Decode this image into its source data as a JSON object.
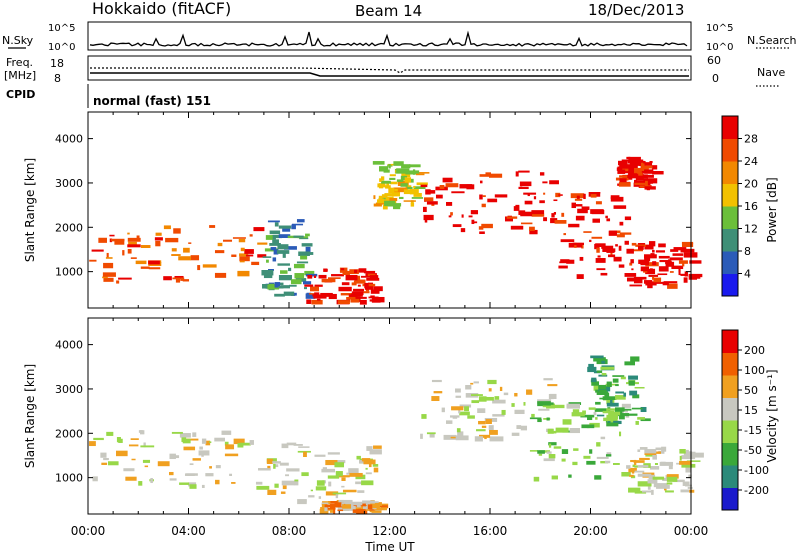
{
  "header": {
    "station": "Hokkaido (fitACF)",
    "beam": "Beam 14",
    "date": "18/Dec/2013"
  },
  "top_panels": {
    "nsky_label": "N.Sky",
    "nsky_ticks": [
      "10^5",
      "10^0"
    ],
    "nsearch_label": "N.Search",
    "nsearch_ticks": [
      "10^5",
      "10^0"
    ],
    "freq_label_line1": "Freq.",
    "freq_label_line2": "[MHz]",
    "freq_ticks": [
      "18",
      "8"
    ],
    "nave_label": "Nave",
    "nave_ticks": [
      "60",
      "0"
    ],
    "cpid_label": "CPID",
    "cpid_text": "normal (fast) 151"
  },
  "chart_data": [
    {
      "type": "heatmap",
      "title": "",
      "ylabel": "Slant Range [km]",
      "xlabel": "",
      "ylim": [
        180,
        4600
      ],
      "yticks": [
        "4000",
        "3000",
        "2000",
        "1000"
      ],
      "colorbar": {
        "label": "Power [dB]",
        "ticks": [
          "28",
          "24",
          "20",
          "16",
          "12",
          "8",
          "4"
        ],
        "colors": [
          "#1a1aee",
          "#2b5bb8",
          "#3f8f77",
          "#6bbf3a",
          "#f2c100",
          "#f28800",
          "#f04a00",
          "#e80000"
        ]
      },
      "regions": [
        {
          "t0": 0.0,
          "t1": 6.8,
          "r0": 800,
          "r1": 2100,
          "level": 6
        },
        {
          "t0": 6.9,
          "t1": 8.7,
          "r0": 500,
          "r1": 2200,
          "level": 2
        },
        {
          "t0": 8.6,
          "t1": 11.4,
          "r0": 350,
          "r1": 1100,
          "level": 7
        },
        {
          "t0": 11.3,
          "t1": 13.2,
          "r0": 2500,
          "r1": 3500,
          "level": 4
        },
        {
          "t0": 13.2,
          "t1": 18.4,
          "r0": 1900,
          "r1": 3300,
          "level": 7
        },
        {
          "t0": 18.4,
          "t1": 21.4,
          "r0": 900,
          "r1": 2800,
          "level": 7
        },
        {
          "t0": 21.4,
          "t1": 24.0,
          "r0": 700,
          "r1": 1700,
          "level": 7
        },
        {
          "t0": 21.0,
          "t1": 22.5,
          "r0": 2900,
          "r1": 3600,
          "level": 7
        }
      ]
    },
    {
      "type": "heatmap",
      "title": "",
      "ylabel": "Slant Range [km]",
      "xlabel": "Time UT",
      "ylim": [
        180,
        4600
      ],
      "yticks": [
        "4000",
        "3000",
        "2000",
        "1000"
      ],
      "xticks": [
        "00:00",
        "04:00",
        "08:00",
        "12:00",
        "16:00",
        "20:00",
        "00:00"
      ],
      "xlim": [
        0,
        24
      ],
      "colorbar": {
        "label": "Velocity [m s⁻¹]",
        "ticks": [
          "200",
          "100",
          "50",
          "15",
          "-15",
          "-50",
          "-100",
          "-200"
        ],
        "colors": [
          "#1a1acc",
          "#2b8a7a",
          "#3aa83a",
          "#98d848",
          "#c8c8c0",
          "#f0a020",
          "#f06000",
          "#e80000"
        ]
      },
      "regions": [
        {
          "t0": 0.0,
          "t1": 6.8,
          "r0": 800,
          "r1": 2100,
          "level": 4
        },
        {
          "t0": 6.9,
          "t1": 11.4,
          "r0": 500,
          "r1": 1800,
          "level": 4
        },
        {
          "t0": 9.2,
          "t1": 11.5,
          "r0": 280,
          "r1": 500,
          "level": 5
        },
        {
          "t0": 13.2,
          "t1": 18.4,
          "r0": 1900,
          "r1": 3300,
          "level": 4
        },
        {
          "t0": 17.4,
          "t1": 21.4,
          "r0": 1000,
          "r1": 2800,
          "level": 3
        },
        {
          "t0": 21.4,
          "t1": 24.0,
          "r0": 700,
          "r1": 1700,
          "level": 4
        },
        {
          "t0": 19.8,
          "t1": 22.0,
          "r0": 2200,
          "r1": 3800,
          "level": 2
        }
      ]
    }
  ]
}
